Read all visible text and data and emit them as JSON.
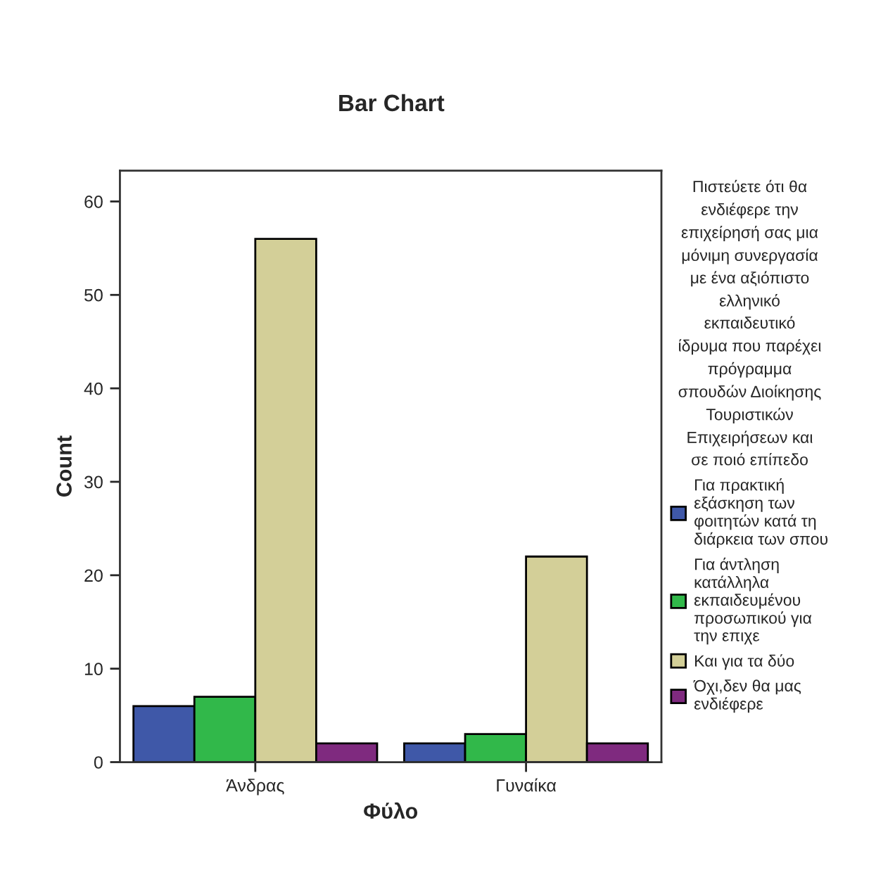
{
  "chart_data": {
    "type": "bar",
    "title": "Bar Chart",
    "xlabel": "Φύλο",
    "ylabel": "Count",
    "legend_title": "Πιστεύετε ότι θα\nενδιέφερε την\nεπιχείρησή σας μια\nμόνιμη συνεργασία\nμε ένα αξιόπιστο\nελληνικό\nεκπαιδευτικό\nίδρυμα που παρέχει\nπρόγραμμα\nσπουδών Διοίκησης\nΤουριστικών\nΕπιχειρήσεων και\nσε ποιό επίπεδο",
    "categories": [
      "Άνδρας",
      "Γυναίκα"
    ],
    "series": [
      {
        "name": "Για πρακτική\nεξάσκηση των\nφοιτητών κατά τη\nδιάρκεια των σπου",
        "color": "#3f58a8",
        "values": [
          6,
          2
        ]
      },
      {
        "name": "Για άντληση\nκατάλληλα\nεκπαιδευμένου\nπροσωπικού για\nτην επιχε",
        "color": "#31b84a",
        "values": [
          7,
          3
        ]
      },
      {
        "name": "Και για τα δύο",
        "color": "#d3cf98",
        "values": [
          56,
          22
        ]
      },
      {
        "name": "Όχι,δεν θα μας\nενδιέφερε",
        "color": "#7f2a7f",
        "values": [
          2,
          2
        ]
      }
    ],
    "ylim": [
      0,
      63.3
    ],
    "yticks": [
      0,
      10,
      20,
      30,
      40,
      50,
      60
    ],
    "grid": false,
    "legend": "right"
  }
}
